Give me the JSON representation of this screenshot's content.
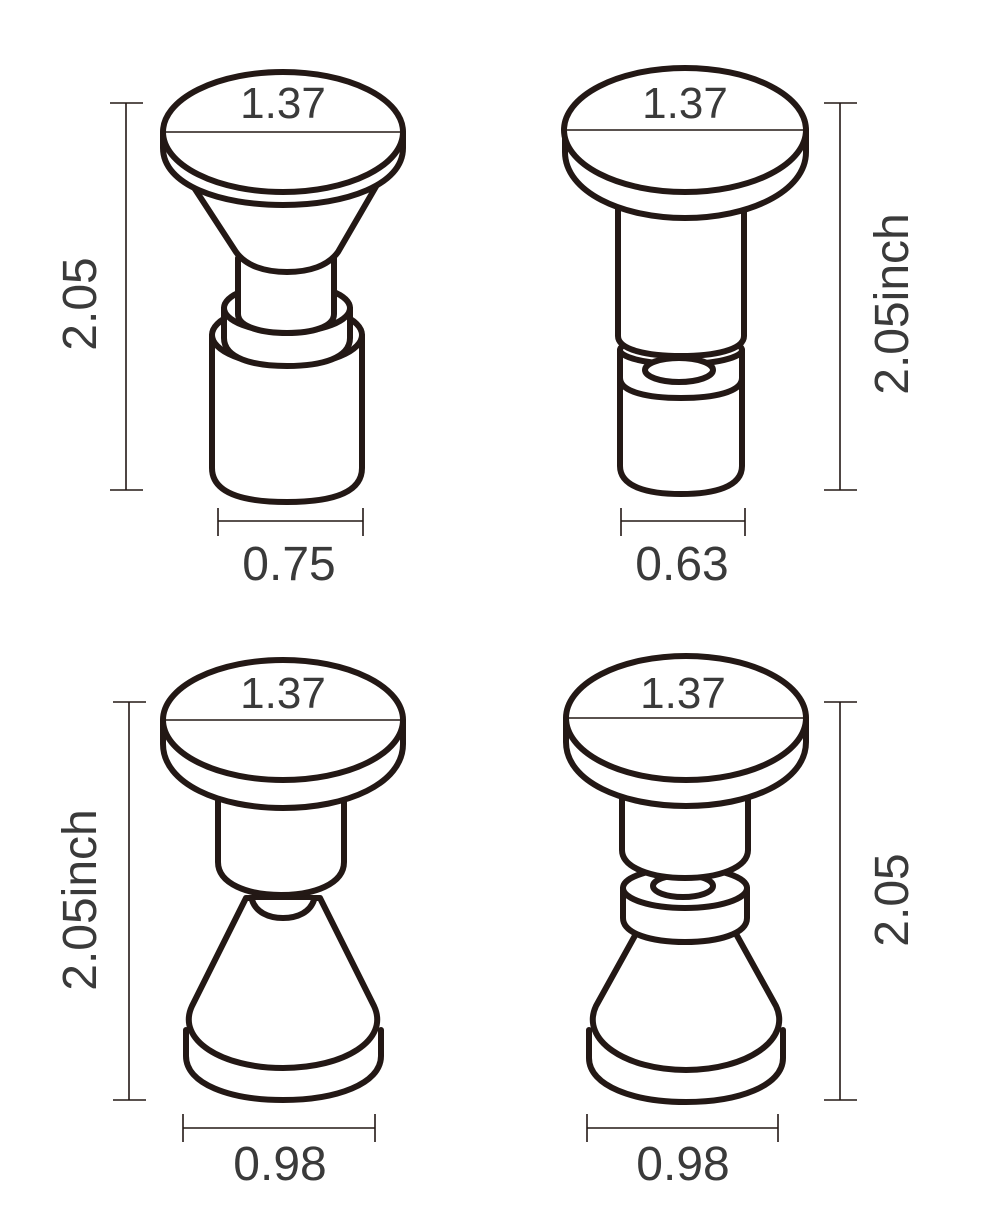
{
  "colors": {
    "outline": "#231815",
    "text": "#3a3a3a",
    "background": "#ffffff"
  },
  "items": [
    {
      "top_diameter": "1.37",
      "height": "2.05",
      "width": "0.75"
    },
    {
      "top_diameter": "1.37",
      "height": "2.05inch",
      "width": "0.63"
    },
    {
      "top_diameter": "1.37",
      "height": "2.05inch",
      "width": "0.98"
    },
    {
      "top_diameter": "1.37",
      "height": "2.05",
      "width": "0.98"
    }
  ]
}
